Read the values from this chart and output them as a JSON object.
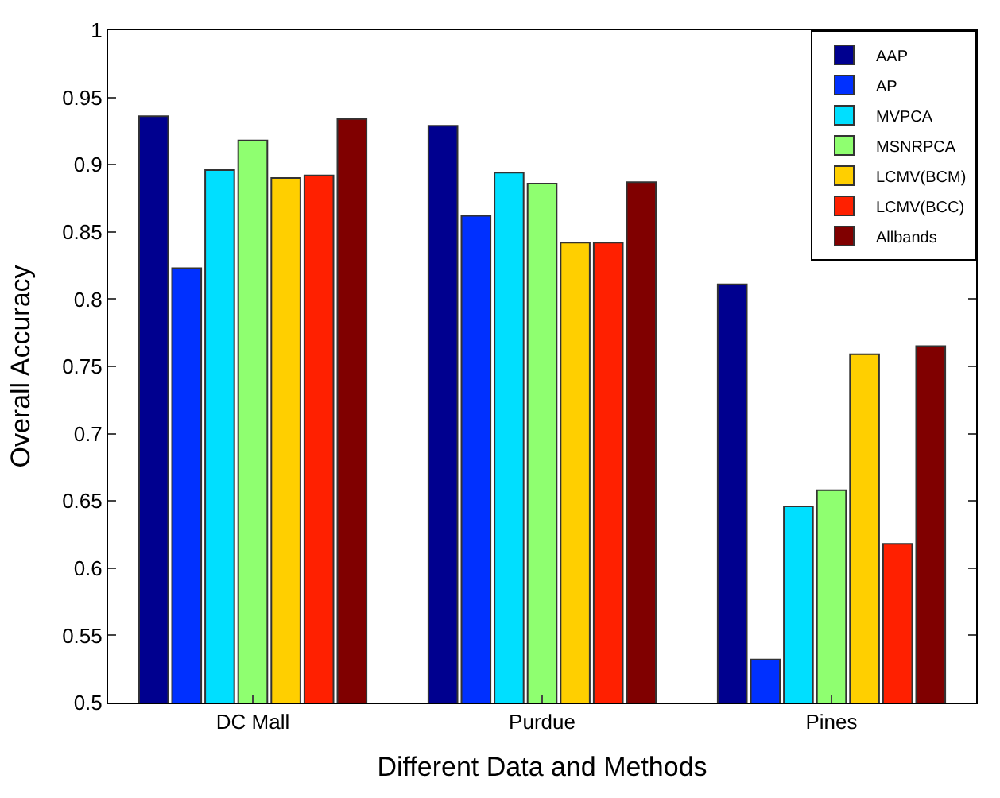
{
  "chart_data": {
    "type": "bar",
    "xlabel": "Different Data and Methods",
    "ylabel": "Overall Accuracy",
    "categories": [
      "DC Mall",
      "Purdue",
      "Pines"
    ],
    "ylim": [
      0.5,
      1
    ],
    "yticks": [
      0.5,
      0.55,
      0.6,
      0.65,
      0.7,
      0.75,
      0.8,
      0.85,
      0.9,
      0.95,
      1
    ],
    "legend": "top right",
    "series": [
      {
        "name": "AAP",
        "color": "#00008f",
        "values": [
          0.936,
          0.929,
          0.811
        ]
      },
      {
        "name": "AP",
        "color": "#0030ff",
        "values": [
          0.823,
          0.862,
          0.532
        ]
      },
      {
        "name": "MVPCA",
        "color": "#00dfff",
        "values": [
          0.896,
          0.894,
          0.646
        ]
      },
      {
        "name": "MSNRPCA",
        "color": "#8fff70",
        "values": [
          0.918,
          0.886,
          0.658
        ]
      },
      {
        "name": "LCMV(BCM)",
        "color": "#ffcf00",
        "values": [
          0.89,
          0.842,
          0.759
        ]
      },
      {
        "name": "LCMV(BCC)",
        "color": "#ff2000",
        "values": [
          0.892,
          0.842,
          0.618
        ]
      },
      {
        "name": "Allbands",
        "color": "#800000",
        "values": [
          0.934,
          0.887,
          0.765
        ]
      }
    ]
  }
}
